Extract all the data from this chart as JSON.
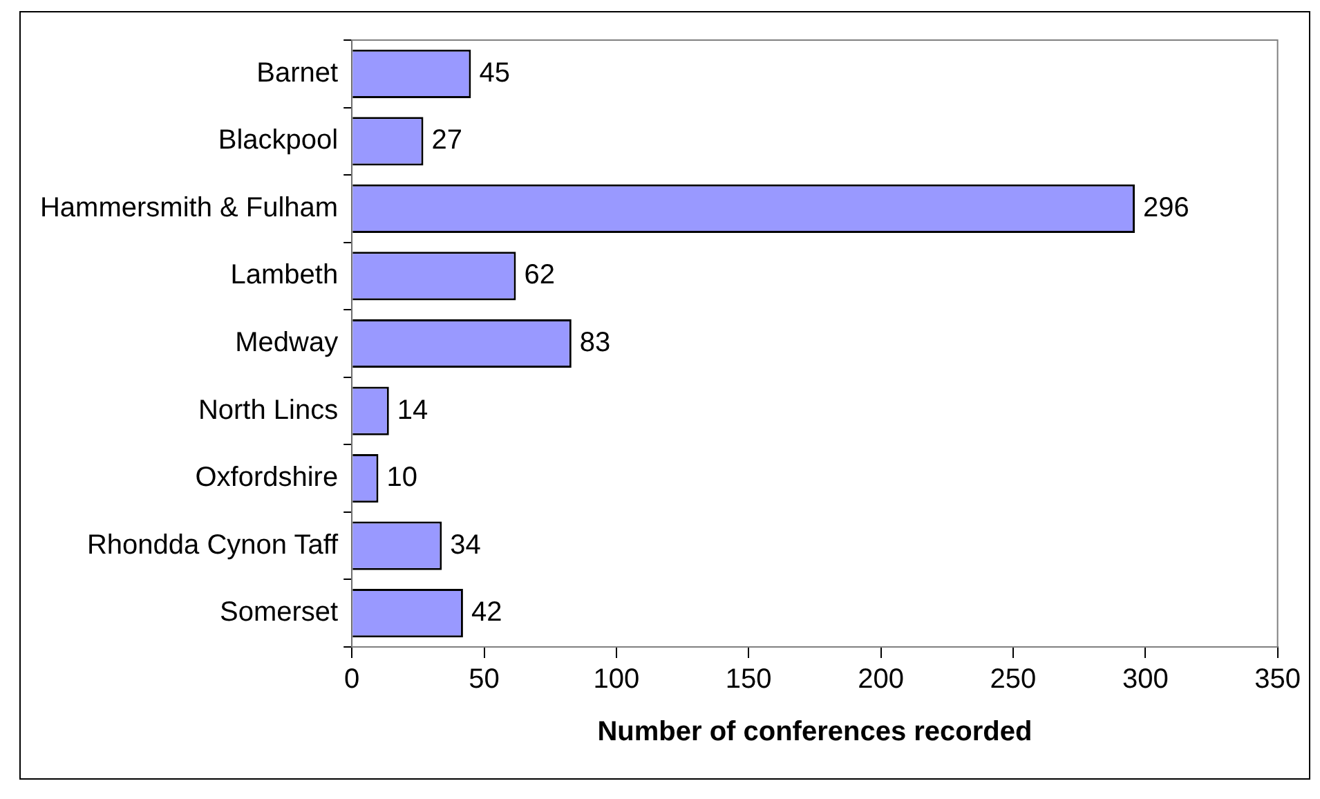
{
  "chart_data": {
    "type": "bar",
    "orientation": "horizontal",
    "categories": [
      "Barnet",
      "Blackpool",
      "Hammersmith & Fulham",
      "Lambeth",
      "Medway",
      "North Lincs",
      "Oxfordshire",
      "Rhondda Cynon Taff",
      "Somerset"
    ],
    "values": [
      45,
      27,
      296,
      62,
      83,
      14,
      10,
      34,
      42
    ],
    "color": "#9999ff",
    "xlabel": "Number of conferences recorded",
    "xlim": [
      0,
      350
    ],
    "xticks": [
      0,
      50,
      100,
      150,
      200,
      250,
      300,
      350
    ],
    "grid": false,
    "legend": false,
    "data_labels": true
  }
}
